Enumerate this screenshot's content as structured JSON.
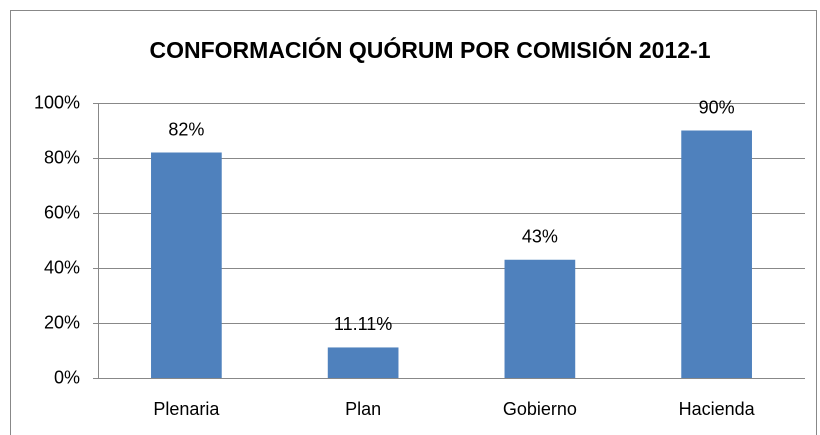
{
  "chart_data": {
    "type": "bar",
    "title": "CONFORMACIÓN QUÓRUM POR COMISIÓN 2012-1",
    "categories": [
      "Plenaria",
      "Plan",
      "Gobierno",
      "Hacienda"
    ],
    "values": [
      82,
      11.11,
      43,
      90
    ],
    "value_labels": [
      "82%",
      "11.11%",
      "43%",
      "90%"
    ],
    "color": "#4f81bd",
    "ylim": [
      0,
      100
    ],
    "yticks": [
      {
        "value": 0,
        "label": "0%"
      },
      {
        "value": 20,
        "label": "20%"
      },
      {
        "value": 40,
        "label": "40%"
      },
      {
        "value": 60,
        "label": "60%"
      },
      {
        "value": 80,
        "label": "80%"
      },
      {
        "value": 100,
        "label": "100%"
      }
    ],
    "grid": true
  }
}
